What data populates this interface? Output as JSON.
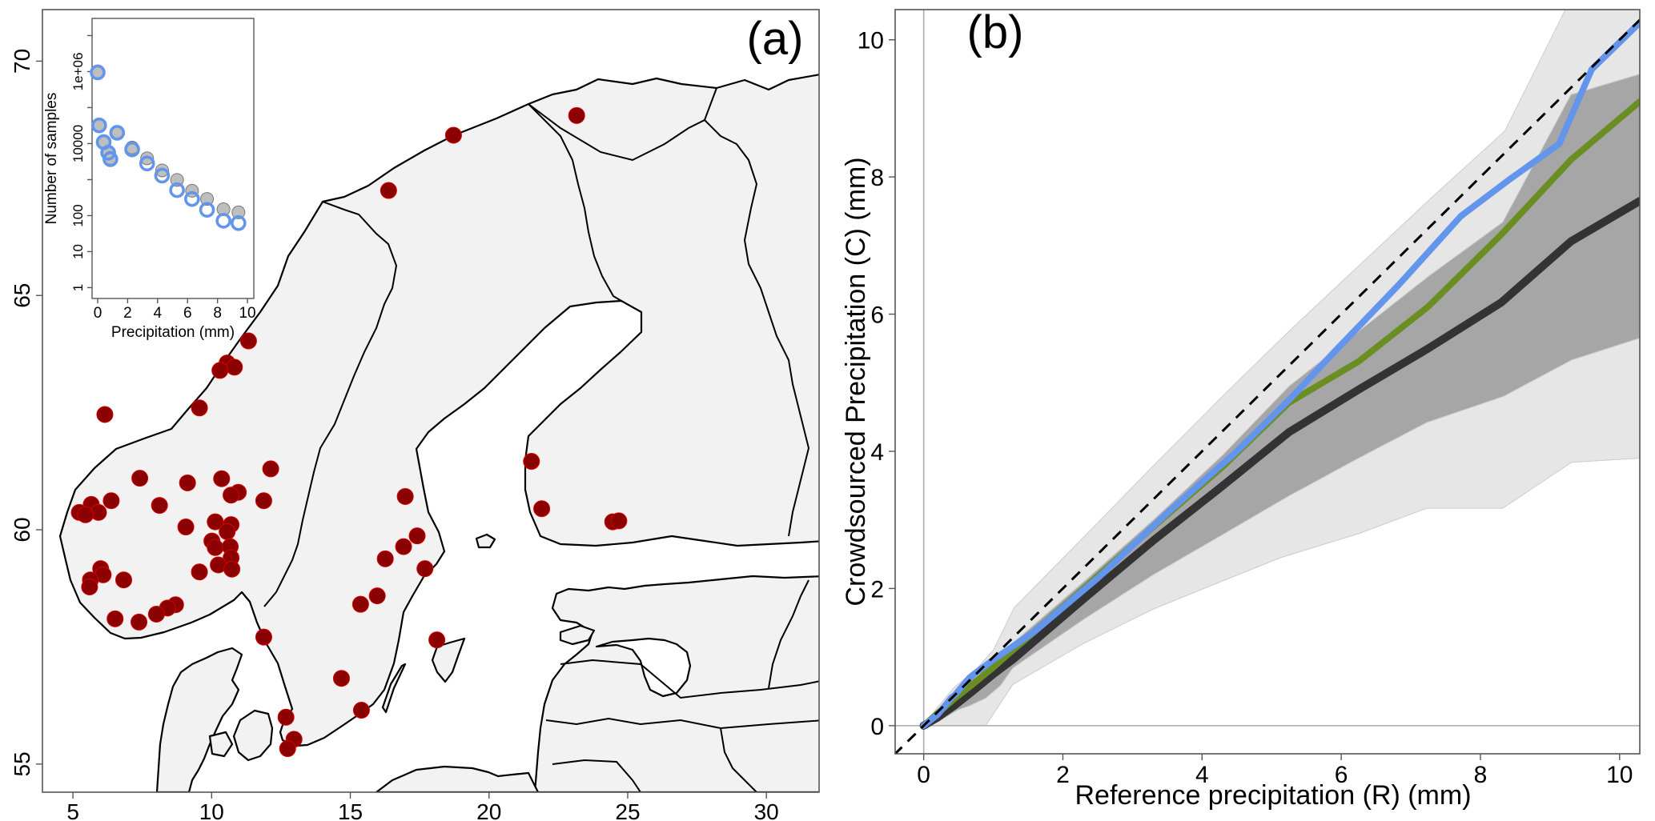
{
  "figure": {
    "panel_a_label": "(a)",
    "panel_b_label": "(b)"
  },
  "chart_data": [
    {
      "type": "scatter",
      "name": "station-map",
      "title": "(a)",
      "xlabel": "",
      "ylabel": "",
      "xticks": [
        "5",
        "10",
        "15",
        "20",
        "25",
        "30"
      ],
      "xtick_values": [
        5,
        10,
        15,
        20,
        25,
        30
      ],
      "yticks": [
        "55",
        "60",
        "65",
        "70"
      ],
      "ytick_values": [
        55,
        60,
        65,
        70
      ],
      "xlim": [
        3.9,
        31.9
      ],
      "ylim": [
        54.4,
        71.1
      ],
      "grid": false,
      "colors": {
        "land": "#f2f2f2",
        "sea": "#ffffff",
        "station": "#8b0000",
        "station_edge": "#d40000"
      },
      "stations": [
        {
          "lon": 11.33,
          "lat": 64.03
        },
        {
          "lon": 10.56,
          "lat": 63.56
        },
        {
          "lon": 10.82,
          "lat": 63.47
        },
        {
          "lon": 10.3,
          "lat": 63.4
        },
        {
          "lon": 9.56,
          "lat": 62.6
        },
        {
          "lon": 6.15,
          "lat": 62.46
        },
        {
          "lon": 7.41,
          "lat": 61.1
        },
        {
          "lon": 9.13,
          "lat": 61.0
        },
        {
          "lon": 10.36,
          "lat": 61.09
        },
        {
          "lon": 10.96,
          "lat": 60.8
        },
        {
          "lon": 10.7,
          "lat": 60.74
        },
        {
          "lon": 12.13,
          "lat": 61.3
        },
        {
          "lon": 11.88,
          "lat": 60.62
        },
        {
          "lon": 8.12,
          "lat": 60.52
        },
        {
          "lon": 6.38,
          "lat": 60.62
        },
        {
          "lon": 5.66,
          "lat": 60.54
        },
        {
          "lon": 5.23,
          "lat": 60.37
        },
        {
          "lon": 5.92,
          "lat": 60.37
        },
        {
          "lon": 5.45,
          "lat": 60.32
        },
        {
          "lon": 9.07,
          "lat": 60.06
        },
        {
          "lon": 10.13,
          "lat": 60.17
        },
        {
          "lon": 10.7,
          "lat": 60.11
        },
        {
          "lon": 10.56,
          "lat": 59.96
        },
        {
          "lon": 10.01,
          "lat": 59.76
        },
        {
          "lon": 10.13,
          "lat": 59.62
        },
        {
          "lon": 10.67,
          "lat": 59.64
        },
        {
          "lon": 10.7,
          "lat": 59.4
        },
        {
          "lon": 10.24,
          "lat": 59.25
        },
        {
          "lon": 10.73,
          "lat": 59.16
        },
        {
          "lon": 9.56,
          "lat": 59.1
        },
        {
          "lon": 6.0,
          "lat": 59.17
        },
        {
          "lon": 6.09,
          "lat": 59.04
        },
        {
          "lon": 5.63,
          "lat": 58.93
        },
        {
          "lon": 5.6,
          "lat": 58.78
        },
        {
          "lon": 6.83,
          "lat": 58.93
        },
        {
          "lon": 8.7,
          "lat": 58.4
        },
        {
          "lon": 8.41,
          "lat": 58.33
        },
        {
          "lon": 8.01,
          "lat": 58.2
        },
        {
          "lon": 7.38,
          "lat": 58.03
        },
        {
          "lon": 6.52,
          "lat": 58.1
        },
        {
          "lon": 11.88,
          "lat": 57.71
        },
        {
          "lon": 16.38,
          "lat": 67.24
        },
        {
          "lon": 18.72,
          "lat": 68.42
        },
        {
          "lon": 23.16,
          "lat": 68.84
        },
        {
          "lon": 16.98,
          "lat": 60.71
        },
        {
          "lon": 17.41,
          "lat": 59.87
        },
        {
          "lon": 16.92,
          "lat": 59.64
        },
        {
          "lon": 16.26,
          "lat": 59.38
        },
        {
          "lon": 17.69,
          "lat": 59.17
        },
        {
          "lon": 15.97,
          "lat": 58.59
        },
        {
          "lon": 15.37,
          "lat": 58.41
        },
        {
          "lon": 18.12,
          "lat": 57.65
        },
        {
          "lon": 14.68,
          "lat": 56.83
        },
        {
          "lon": 15.4,
          "lat": 56.15
        },
        {
          "lon": 12.68,
          "lat": 56.0
        },
        {
          "lon": 12.97,
          "lat": 55.53
        },
        {
          "lon": 12.74,
          "lat": 55.33
        },
        {
          "lon": 21.53,
          "lat": 61.46
        },
        {
          "lon": 21.9,
          "lat": 60.45
        },
        {
          "lon": 24.46,
          "lat": 60.17
        },
        {
          "lon": 24.68,
          "lat": 60.19
        }
      ]
    },
    {
      "type": "scatter",
      "name": "sample-count-inset",
      "title": "",
      "xlabel": "Precipitation (mm)",
      "ylabel": "Number of samples",
      "yscale": "log",
      "xlim": [
        -0.4,
        10.3
      ],
      "ylim": [
        0.5,
        30000000
      ],
      "xticks": [
        "0",
        "2",
        "4",
        "6",
        "8",
        "10"
      ],
      "xtick_values": [
        0,
        2,
        4,
        6,
        8,
        10
      ],
      "yticks": [
        "1",
        "10",
        "100",
        "10000",
        "1e+06"
      ],
      "ytick_values": [
        1,
        10,
        100,
        10000,
        1000000
      ],
      "minor_ytick_values": [
        1000,
        100000,
        10000000
      ],
      "grid": false,
      "series": [
        {
          "name": "reference",
          "color": "#bebebe",
          "marker": "filled-circle",
          "x": [
            0,
            0.1,
            0.4,
            0.7,
            0.85,
            1.3,
            2.3,
            3.3,
            4.3,
            5.3,
            6.3,
            7.3,
            8.4,
            9.4
          ],
          "y": [
            950000,
            32000,
            11000,
            5600,
            4000,
            20000,
            7800,
            3900,
            1800,
            980,
            490,
            290,
            150,
            123
          ]
        },
        {
          "name": "crowdsourced",
          "color": "#6495ed",
          "marker": "open-circle",
          "x": [
            0,
            0.1,
            0.4,
            0.7,
            0.85,
            1.3,
            2.3,
            3.3,
            4.3,
            5.3,
            6.3,
            7.3,
            8.4,
            9.4
          ],
          "y": [
            950000,
            32000,
            11000,
            5600,
            3700,
            20000,
            6900,
            2800,
            1290,
            510,
            290,
            145,
            72,
            62
          ]
        }
      ]
    },
    {
      "type": "line",
      "name": "crowdsourced-vs-reference",
      "title": "(b)",
      "xlabel": "Reference precipitation (R) (mm)",
      "ylabel": "Crowdsourced Precipitation (C) (mm)",
      "xlim": [
        -0.41,
        10.29
      ],
      "ylim": [
        -0.41,
        10.44
      ],
      "xticks": [
        "0",
        "2",
        "4",
        "6",
        "8",
        "10"
      ],
      "xtick_values": [
        0,
        2,
        4,
        6,
        8,
        10
      ],
      "yticks": [
        "0",
        "2",
        "4",
        "6",
        "8",
        "10"
      ],
      "ytick_values": [
        0,
        2,
        4,
        6,
        8,
        10
      ],
      "grid": false,
      "reference_lines": [
        {
          "name": "zero-x",
          "axis": "x",
          "value": 0,
          "color": "#aaaaaa"
        },
        {
          "name": "zero-y",
          "axis": "y",
          "value": 0,
          "color": "#aaaaaa"
        },
        {
          "name": "one-to-one",
          "slope": 1,
          "intercept": 0,
          "style": "dashed",
          "color": "#000000"
        }
      ],
      "bands": [
        {
          "name": "outer-range",
          "color": "#e6e6e6",
          "x": [
            0,
            0.16,
            0.43,
            0.77,
            1.0,
            1.3,
            2.3,
            3.33,
            4.36,
            5.3,
            6.3,
            7.3,
            8.35,
            9.3,
            10.29
          ],
          "upper": [
            0,
            0.22,
            0.55,
            0.84,
            1.1,
            1.72,
            2.75,
            3.82,
            4.87,
            5.8,
            6.75,
            7.7,
            8.67,
            10.6,
            10.6
          ],
          "lower_x": [
            0,
            0.89,
            1.28,
            2.3,
            3.3,
            4.27,
            5.13,
            6.25,
            7.23,
            8.32,
            9.31,
            10.29
          ],
          "lower": [
            0,
            0,
            0.6,
            1.2,
            1.7,
            2.1,
            2.45,
            2.8,
            3.17,
            3.17,
            3.84,
            3.9
          ]
        },
        {
          "name": "inner-range",
          "color": "#a6a6a6",
          "x": [
            0,
            0.22,
            0.49,
            0.8,
            1.07,
            1.3,
            2.3,
            3.3,
            4.3,
            5.25,
            6.25,
            7.25,
            8.32,
            9.3,
            10.29
          ],
          "upper": [
            0,
            0.23,
            0.55,
            0.75,
            1.05,
            1.22,
            2.1,
            3.0,
            3.95,
            4.95,
            5.75,
            6.55,
            7.34,
            9.2,
            9.5
          ],
          "lower_x": [
            0,
            0.2,
            0.49,
            0.66,
            0.89,
            1.1,
            1.28,
            2.3,
            3.3,
            4.27,
            5.25,
            6.25,
            7.23,
            8.33,
            9.31,
            10.29
          ],
          "lower": [
            0,
            0.05,
            0.23,
            0.29,
            0.4,
            0.58,
            0.84,
            1.55,
            2.2,
            2.77,
            3.35,
            3.9,
            4.42,
            4.8,
            5.33,
            5.65
          ]
        }
      ],
      "series": [
        {
          "name": "median",
          "color": "#333333",
          "x": [
            0,
            0.2,
            0.45,
            0.7,
            1.0,
            1.3,
            2.3,
            3.3,
            4.3,
            5.25,
            6.25,
            7.25,
            8.3,
            9.3,
            10.29
          ],
          "y": [
            0,
            0.12,
            0.3,
            0.5,
            0.75,
            0.98,
            1.85,
            2.7,
            3.5,
            4.28,
            4.9,
            5.5,
            6.17,
            7.06,
            7.65
          ]
        },
        {
          "name": "green-series",
          "color": "#6b8e23",
          "x": [
            0,
            0.2,
            0.45,
            0.7,
            1.0,
            1.3,
            2.3,
            3.3,
            4.3,
            5.25,
            6.25,
            7.25,
            8.3,
            9.3,
            10.29
          ],
          "y": [
            0,
            0.18,
            0.4,
            0.6,
            0.85,
            1.12,
            2.0,
            2.9,
            3.78,
            4.71,
            5.31,
            6.11,
            7.16,
            8.25,
            9.1
          ]
        },
        {
          "name": "blue-series",
          "color": "#6495ed",
          "x": [
            0,
            0.2,
            0.4,
            0.45,
            0.66,
            0.72,
            1.0,
            1.6,
            2.5,
            3.5,
            4.5,
            5.3,
            5.9,
            6.82,
            7.72,
            8.4,
            9.13,
            9.6,
            10.29
          ],
          "y": [
            0,
            0.16,
            0.41,
            0.45,
            0.7,
            0.75,
            0.96,
            1.38,
            2.15,
            3.1,
            4.0,
            4.8,
            5.45,
            6.42,
            7.43,
            7.95,
            8.48,
            9.57,
            10.25
          ]
        }
      ]
    }
  ]
}
